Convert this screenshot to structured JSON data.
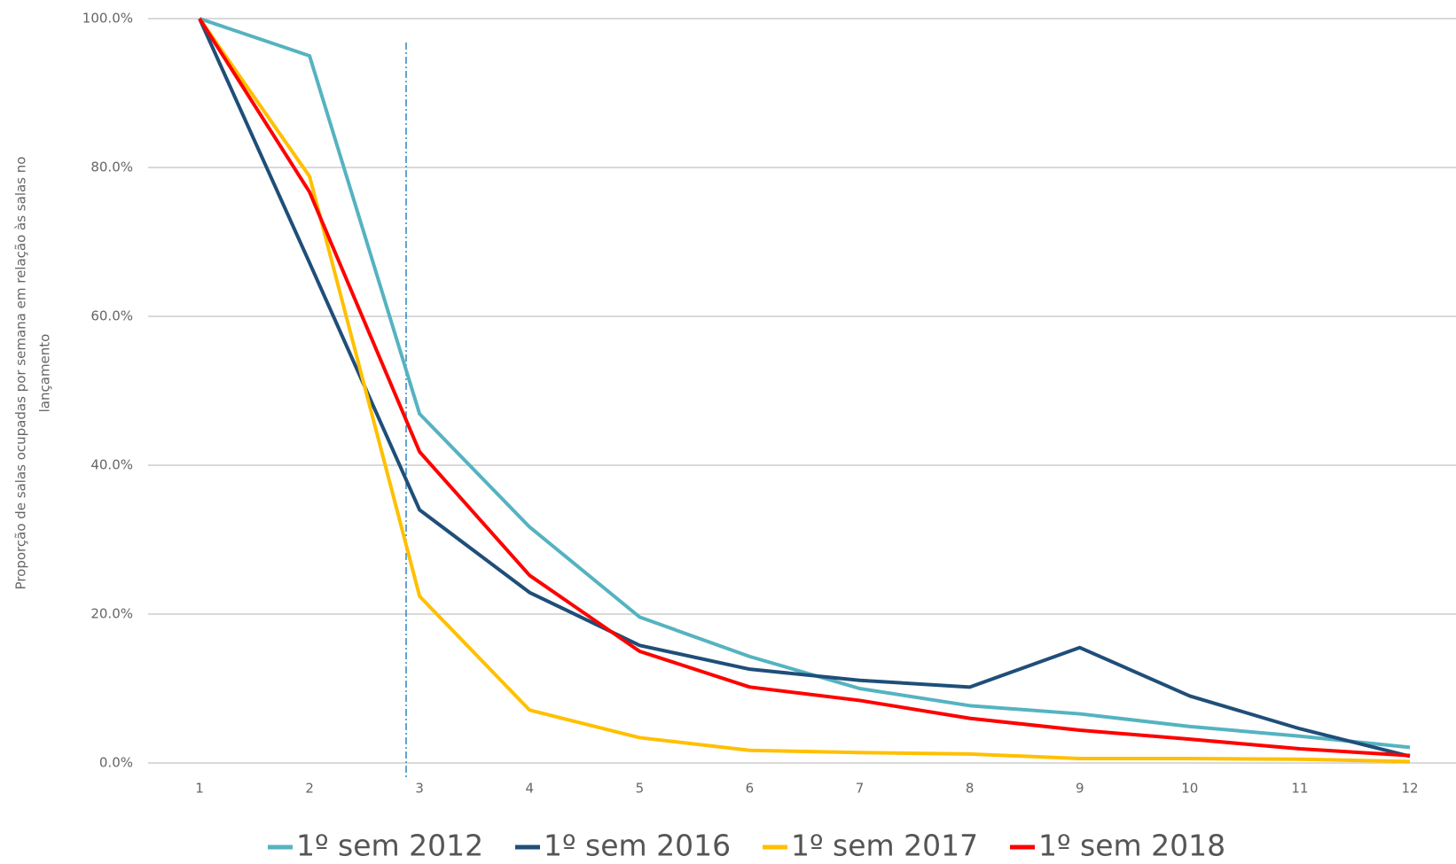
{
  "chart_data": {
    "type": "line",
    "y_label": [
      "Proporção de salas ocupadas por semana em relação às salas no",
      "lançamento"
    ],
    "categories": [
      "1",
      "2",
      "3",
      "4",
      "5",
      "6",
      "7",
      "8",
      "9",
      "10",
      "11",
      "12"
    ],
    "series": [
      {
        "name": "1º sem 2012",
        "color": "#55b3c1",
        "values": [
          100,
          95,
          46.9,
          31.7,
          19.6,
          14.3,
          10,
          7.7,
          6.6,
          4.9,
          3.6,
          2.1
        ]
      },
      {
        "name": "1º sem 2016",
        "color": "#1f4e79",
        "values": [
          100,
          67.2,
          34,
          22.9,
          15.8,
          12.6,
          11.1,
          10.2,
          15.5,
          9,
          4.6,
          0.9
        ]
      },
      {
        "name": "1º sem 2017",
        "color": "#ffc000",
        "values": [
          100,
          78.8,
          22.4,
          7.1,
          3.4,
          1.7,
          1.4,
          1.2,
          0.6,
          0.6,
          0.5,
          0.2
        ]
      },
      {
        "name": "1º sem 2018",
        "color": "#ff0000",
        "values": [
          100,
          76.7,
          41.8,
          25.2,
          15,
          10.2,
          8.4,
          6,
          4.4,
          3.2,
          1.9,
          1
        ]
      }
    ],
    "ylim": [
      0,
      100
    ],
    "yticks": [
      {
        "value": 0,
        "label": "0.0%"
      },
      {
        "value": 20,
        "label": "20.0%"
      },
      {
        "value": 40,
        "label": "40.0%"
      },
      {
        "value": 60,
        "label": "60.0%"
      },
      {
        "value": 80,
        "label": "80.0%"
      },
      {
        "value": 100,
        "label": "100.0%"
      }
    ],
    "grid": true,
    "legend": "bottom"
  }
}
